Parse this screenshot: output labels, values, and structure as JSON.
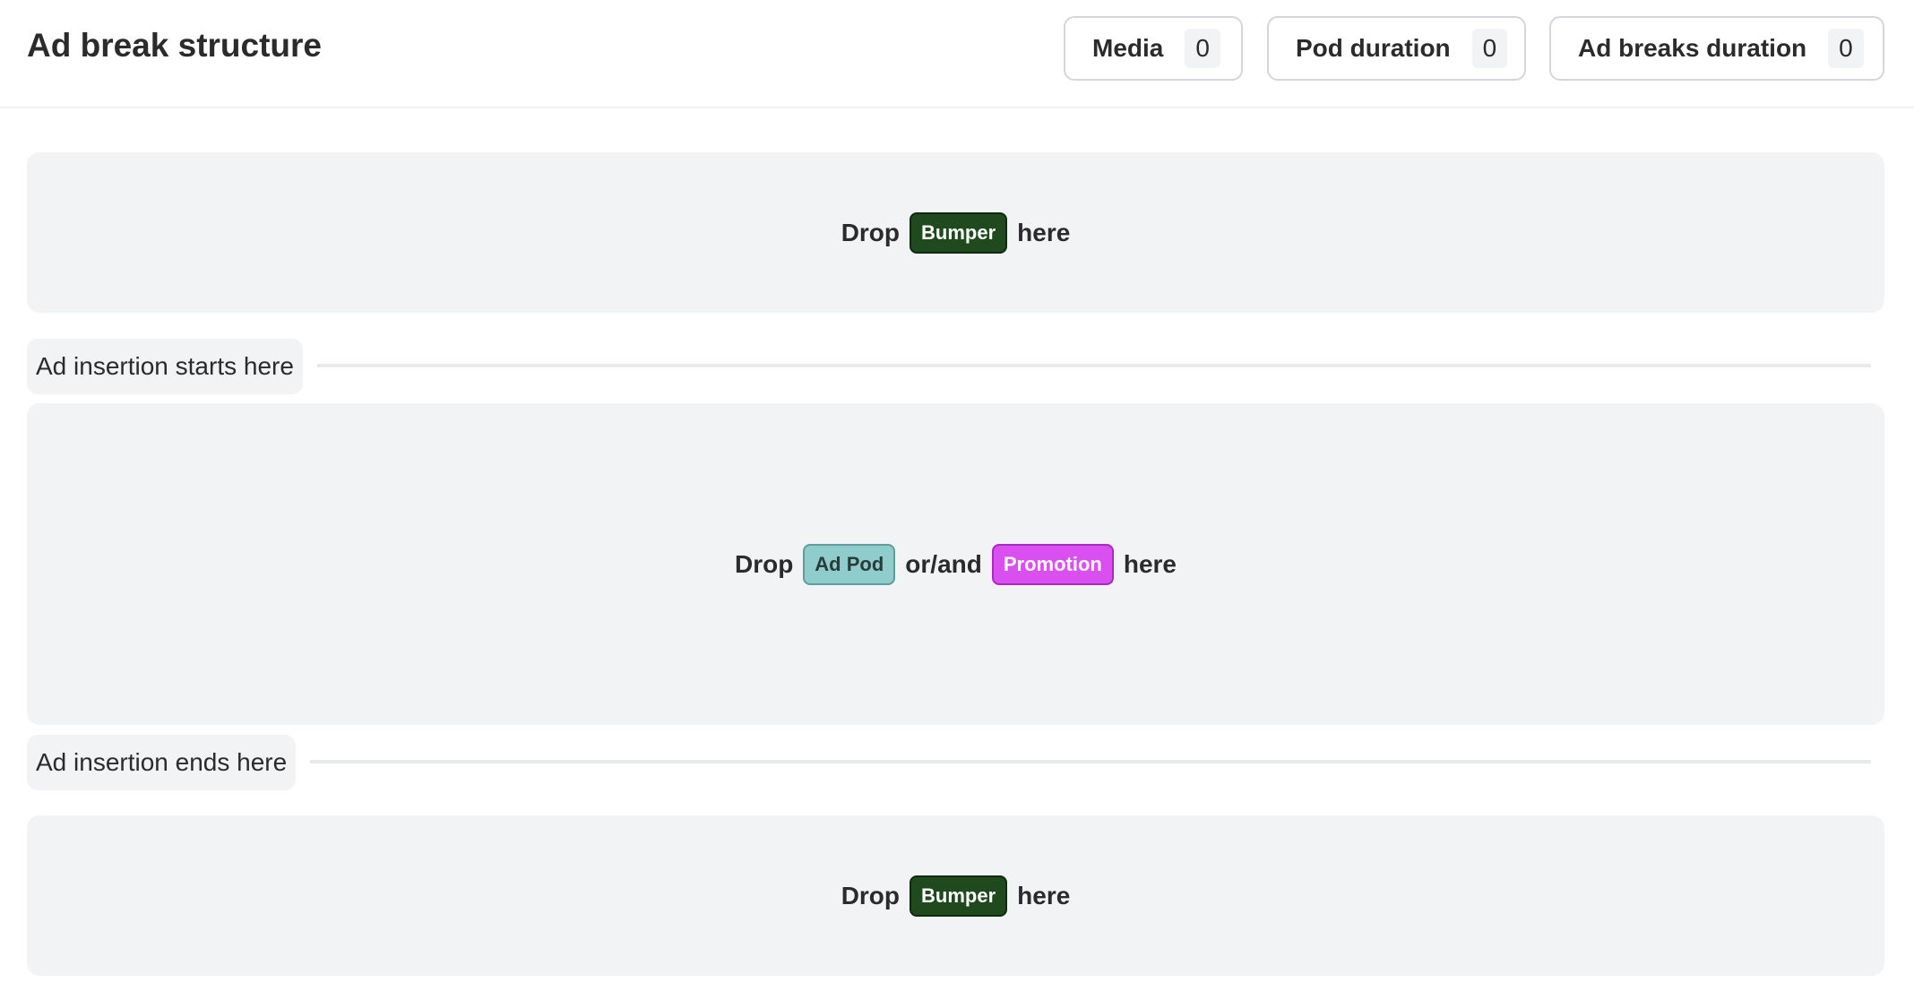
{
  "header": {
    "title": "Ad break structure",
    "stats": [
      {
        "label": "Media",
        "value": "0"
      },
      {
        "label": "Pod duration",
        "value": "0"
      },
      {
        "label": "Ad breaks duration",
        "value": "0"
      }
    ]
  },
  "zones": {
    "top": {
      "prefix": "Drop",
      "pill": "Bumper",
      "suffix": "here"
    },
    "middle": {
      "prefix": "Drop",
      "pill1": "Ad Pod",
      "joiner": "or/and",
      "pill2": "Promotion",
      "suffix": "here"
    },
    "bottom": {
      "prefix": "Drop",
      "pill": "Bumper",
      "suffix": "here"
    }
  },
  "markers": {
    "start": "Ad insertion starts here",
    "end": "Ad insertion ends here"
  },
  "colors": {
    "bumper": "#1f4a1e",
    "ad_pod": "#8fcccc",
    "promotion": "#d94ff0",
    "zone_bg": "#f2f3f5"
  }
}
